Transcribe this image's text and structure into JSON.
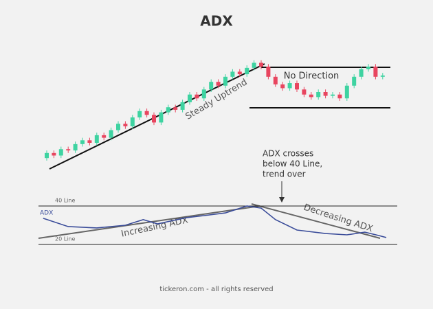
{
  "title": "ADX",
  "footer": "tickeron.com - all rights reserved",
  "chart_data": [
    {
      "type": "candlestick",
      "up_color": "#3ed3a1",
      "down_color": "#e8455f",
      "xlim": [
        -1,
        48
      ],
      "ylim": [
        0,
        100
      ],
      "open": [
        8,
        12,
        10,
        15,
        14,
        19,
        22,
        20,
        26,
        24,
        30,
        35,
        33,
        40,
        45,
        42,
        36,
        44,
        48,
        46,
        52,
        58,
        55,
        62,
        68,
        65,
        72,
        76,
        74,
        79,
        83,
        80,
        72,
        66,
        63,
        67,
        62,
        58,
        56,
        60,
        57,
        58,
        55,
        65,
        72,
        78,
        80,
        72
      ],
      "high": [
        14,
        14,
        17,
        17,
        21,
        24,
        24,
        28,
        28,
        32,
        37,
        37,
        42,
        47,
        47,
        44,
        46,
        50,
        50,
        54,
        60,
        60,
        64,
        70,
        70,
        74,
        78,
        78,
        81,
        85,
        85,
        82,
        74,
        68,
        69,
        69,
        64,
        60,
        62,
        62,
        60,
        60,
        67,
        74,
        80,
        82,
        82,
        75
      ],
      "low": [
        6,
        8,
        8,
        12,
        12,
        17,
        18,
        18,
        22,
        22,
        28,
        31,
        31,
        38,
        40,
        34,
        34,
        42,
        44,
        44,
        50,
        53,
        53,
        60,
        63,
        63,
        70,
        72,
        72,
        77,
        78,
        70,
        64,
        61,
        61,
        60,
        56,
        54,
        54,
        55,
        55,
        53,
        53,
        63,
        70,
        76,
        70,
        70
      ],
      "close": [
        12,
        10,
        15,
        14,
        19,
        22,
        20,
        26,
        24,
        30,
        35,
        33,
        40,
        45,
        42,
        36,
        44,
        48,
        46,
        52,
        58,
        55,
        62,
        68,
        65,
        72,
        76,
        74,
        79,
        83,
        80,
        72,
        66,
        63,
        67,
        62,
        58,
        56,
        60,
        57,
        58,
        55,
        65,
        72,
        78,
        80,
        72,
        73
      ],
      "annotations": [
        "Steady Uptrend",
        "No Direction",
        [
          "ADX crosses",
          "below 40 Line,",
          "trend over"
        ]
      ]
    },
    {
      "type": "line",
      "xlim": [
        -1,
        48
      ],
      "ylim": [
        15,
        45
      ],
      "x": [
        -0.5,
        3,
        7,
        11,
        13.5,
        15.5,
        19.5,
        22,
        25,
        28,
        30,
        32,
        35,
        39,
        42,
        44.5,
        46.5,
        47.5
      ],
      "series": [
        {
          "name": "ADX",
          "color": "#3b4d9a",
          "values": [
            33.6,
            29.3,
            28.6,
            30,
            32.9,
            30.7,
            33.9,
            35,
            36.4,
            40,
            38.9,
            32.9,
            27.5,
            25.7,
            25,
            26.4,
            24.6,
            23.6
          ]
        }
      ],
      "reference_lines": [
        {
          "value": 40,
          "label": "40 Line"
        },
        {
          "value": 20,
          "label": "20 Line"
        }
      ],
      "annotations": [
        "Increasing ADX",
        "Decreasing ADX"
      ]
    }
  ]
}
